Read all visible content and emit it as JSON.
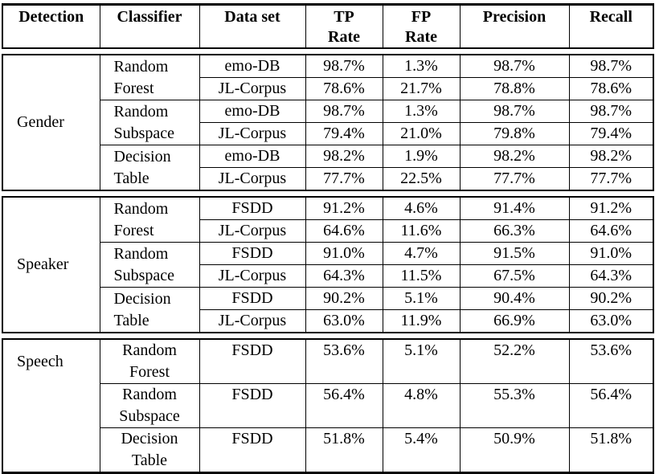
{
  "columns": [
    {
      "label": "Detection"
    },
    {
      "label": "Classifier"
    },
    {
      "label": "Data set"
    },
    {
      "label": "TP",
      "label2": "Rate"
    },
    {
      "label": "FP",
      "label2": "Rate"
    },
    {
      "label": "Precision"
    },
    {
      "label": "Recall"
    }
  ],
  "sections": [
    {
      "detection": "Gender",
      "groups": [
        {
          "classifier1": "Random",
          "classifier2": "Forest",
          "rows": [
            {
              "dataset": "emo-DB",
              "tp": "98.7%",
              "fp": "1.3%",
              "precision": "98.7%",
              "recall": "98.7%"
            },
            {
              "dataset": "JL-Corpus",
              "tp": "78.6%",
              "fp": "21.7%",
              "precision": "78.8%",
              "recall": "78.6%"
            }
          ]
        },
        {
          "classifier1": "Random",
          "classifier2": "Subspace",
          "rows": [
            {
              "dataset": "emo-DB",
              "tp": "98.7%",
              "fp": "1.3%",
              "precision": "98.7%",
              "recall": "98.7%"
            },
            {
              "dataset": "JL-Corpus",
              "tp": "79.4%",
              "fp": "21.0%",
              "precision": "79.8%",
              "recall": "79.4%"
            }
          ]
        },
        {
          "classifier1": "Decision",
          "classifier2": "Table",
          "rows": [
            {
              "dataset": "emo-DB",
              "tp": "98.2%",
              "fp": "1.9%",
              "precision": "98.2%",
              "recall": "98.2%"
            },
            {
              "dataset": "JL-Corpus",
              "tp": "77.7%",
              "fp": "22.5%",
              "precision": "77.7%",
              "recall": "77.7%"
            }
          ]
        }
      ]
    },
    {
      "detection": "Speaker",
      "groups": [
        {
          "classifier1": "Random",
          "classifier2": "Forest",
          "rows": [
            {
              "dataset": "FSDD",
              "tp": "91.2%",
              "fp": "4.6%",
              "precision": "91.4%",
              "recall": "91.2%"
            },
            {
              "dataset": "JL-Corpus",
              "tp": "64.6%",
              "fp": "11.6%",
              "precision": "66.3%",
              "recall": "64.6%"
            }
          ]
        },
        {
          "classifier1": "Random",
          "classifier2": "Subspace",
          "rows": [
            {
              "dataset": "FSDD",
              "tp": "91.0%",
              "fp": "4.7%",
              "precision": "91.5%",
              "recall": "91.0%"
            },
            {
              "dataset": "JL-Corpus",
              "tp": "64.3%",
              "fp": "11.5%",
              "precision": "67.5%",
              "recall": "64.3%"
            }
          ]
        },
        {
          "classifier1": "Decision",
          "classifier2": "Table",
          "rows": [
            {
              "dataset": "FSDD",
              "tp": "90.2%",
              "fp": "5.1%",
              "precision": "90.4%",
              "recall": "90.2%"
            },
            {
              "dataset": "JL-Corpus",
              "tp": "63.0%",
              "fp": "11.9%",
              "precision": "66.9%",
              "recall": "63.0%"
            }
          ]
        }
      ]
    },
    {
      "detection": "Speech",
      "groups": [
        {
          "classifier1": "Random",
          "classifier2": "Forest",
          "rows": [
            {
              "dataset": "FSDD",
              "tp": "53.6%",
              "fp": "5.1%",
              "precision": "52.2%",
              "recall": "53.6%"
            }
          ]
        },
        {
          "classifier1": "Random",
          "classifier2": "Subspace",
          "rows": [
            {
              "dataset": "FSDD",
              "tp": "56.4%",
              "fp": "4.8%",
              "precision": "55.3%",
              "recall": "56.4%"
            }
          ]
        },
        {
          "classifier1": "Decision",
          "classifier2": "Table",
          "rows": [
            {
              "dataset": "FSDD",
              "tp": "51.8%",
              "fp": "5.4%",
              "precision": "50.9%",
              "recall": "51.8%"
            }
          ]
        }
      ]
    }
  ],
  "colors": {
    "border": "#000000",
    "text": "#000000",
    "background": "#ffffff"
  }
}
